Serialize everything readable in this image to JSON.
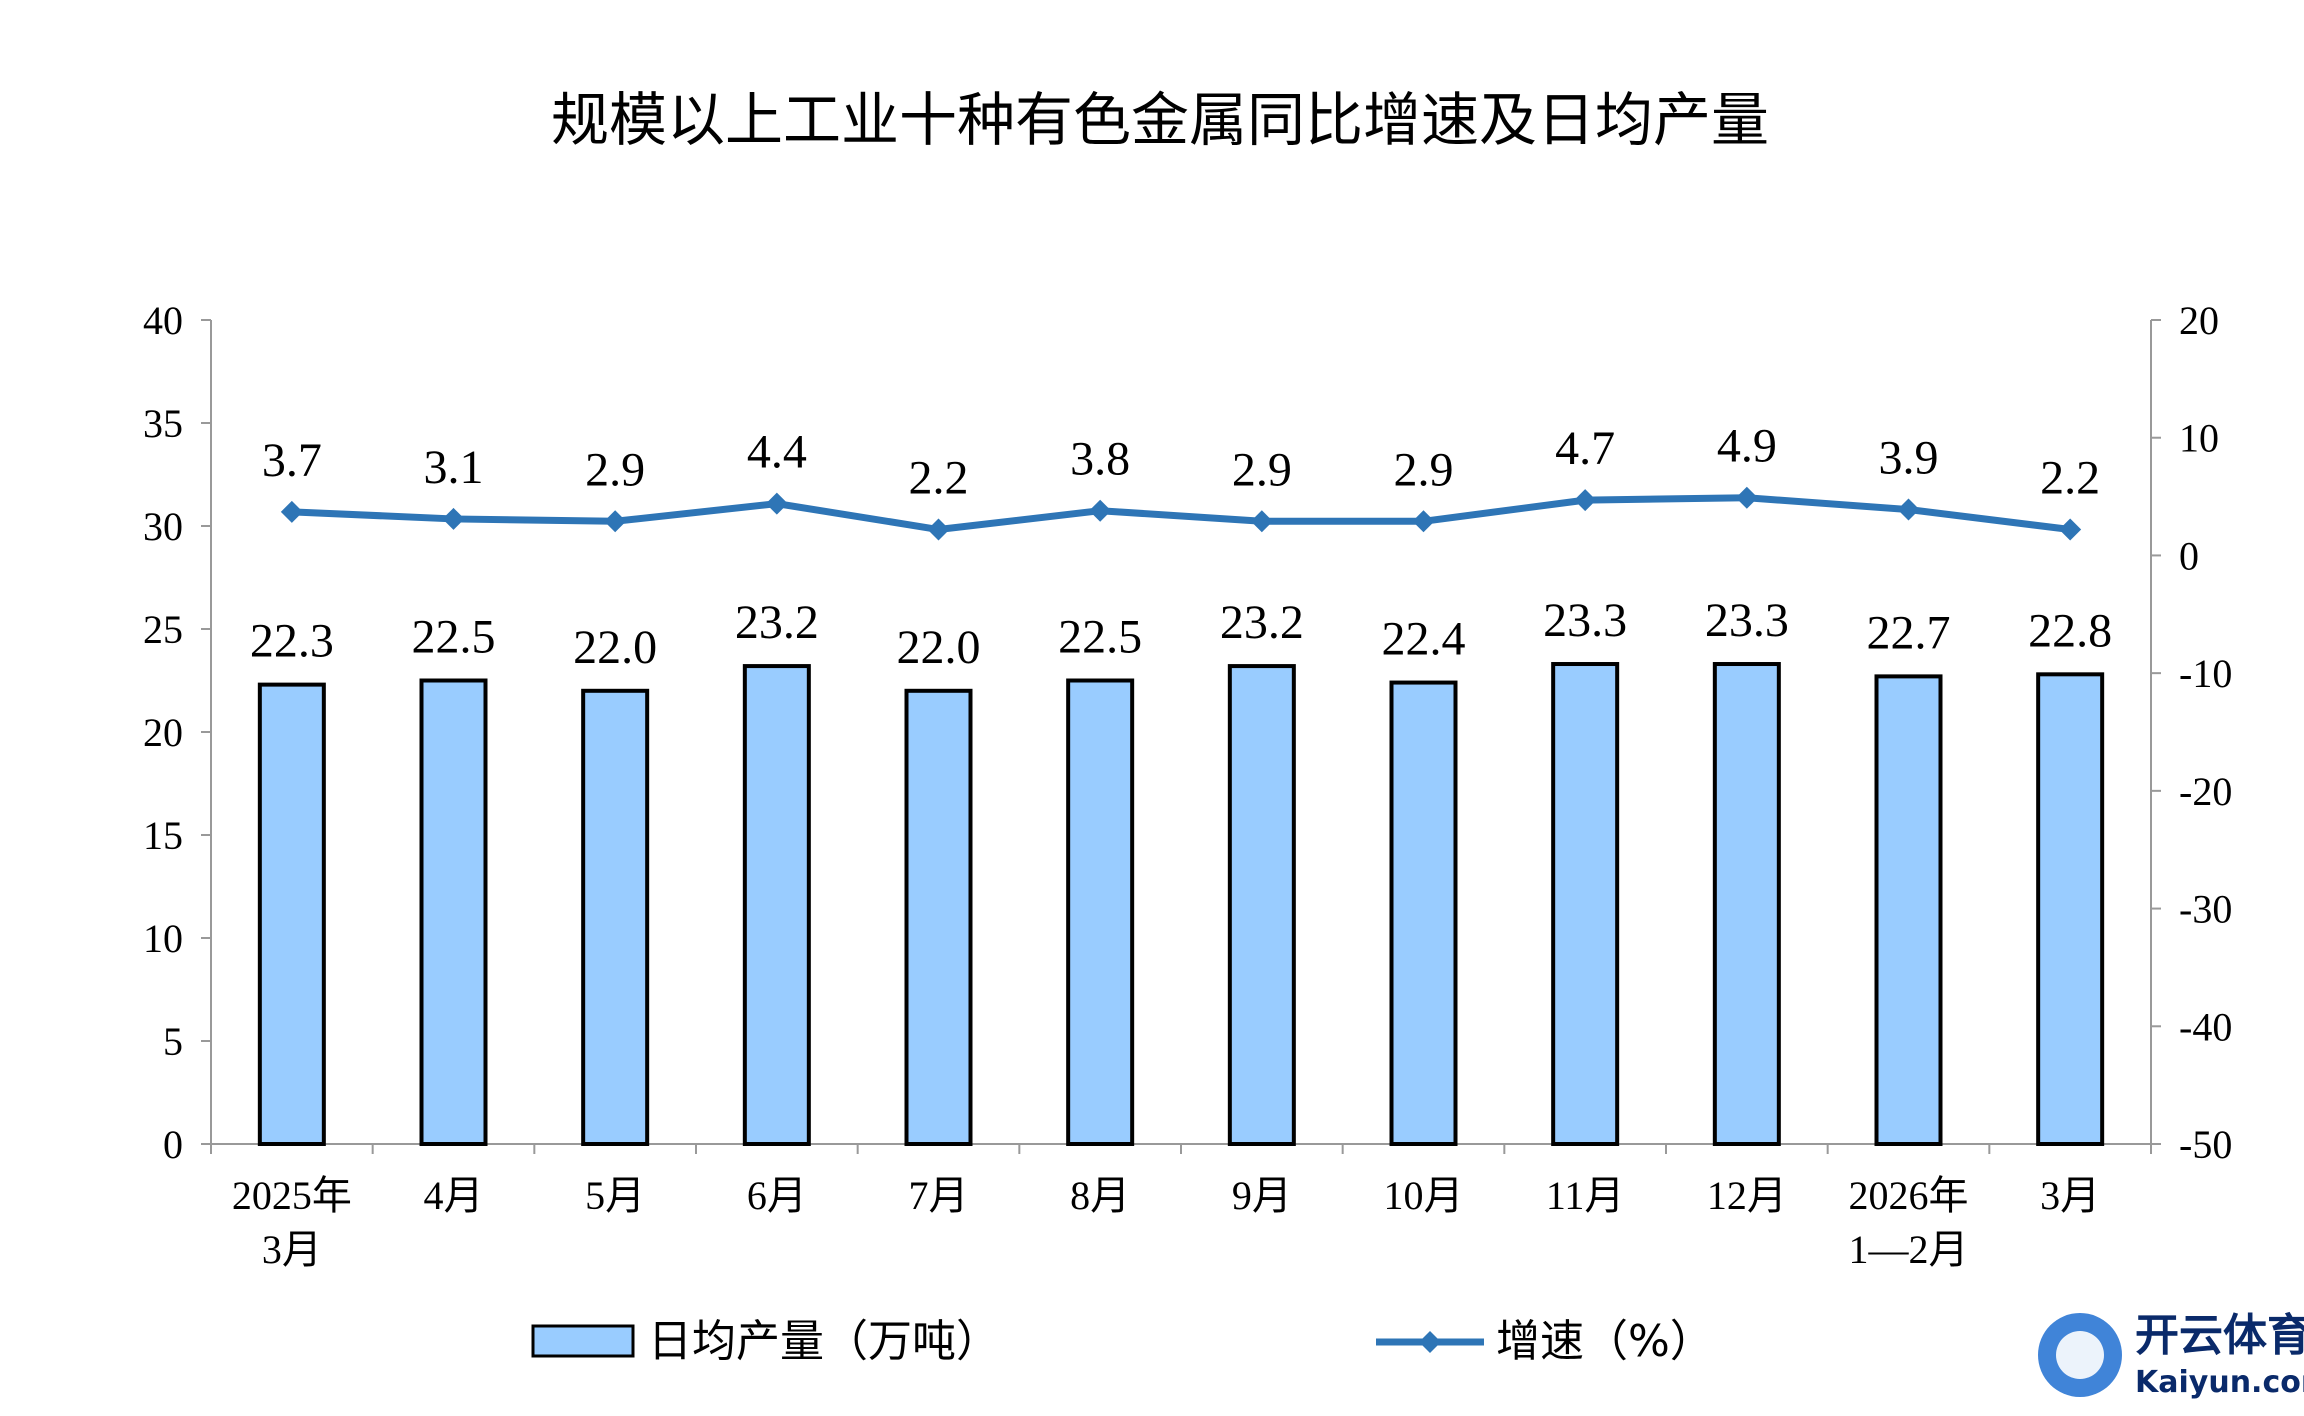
{
  "chart_data": {
    "type": "bar+line",
    "title": "规模以上工业十种有色金属同比增速及日均产量",
    "categories": [
      [
        "2025年",
        "3月"
      ],
      [
        "4月"
      ],
      [
        "5月"
      ],
      [
        "6月"
      ],
      [
        "7月"
      ],
      [
        "8月"
      ],
      [
        "9月"
      ],
      [
        "10月"
      ],
      [
        "11月"
      ],
      [
        "12月"
      ],
      [
        "2026年",
        "1—2月"
      ],
      [
        "3月"
      ]
    ],
    "series": [
      {
        "name": "日均产量（万吨）",
        "type": "bar",
        "axis": "left",
        "color": "#99ccff",
        "values": [
          22.3,
          22.5,
          22.0,
          23.2,
          22.0,
          22.5,
          23.2,
          22.4,
          23.3,
          23.3,
          22.7,
          22.8
        ]
      },
      {
        "name": "增速（%）",
        "type": "line",
        "axis": "right",
        "color": "#2e75b6",
        "values": [
          3.7,
          3.1,
          2.9,
          4.4,
          2.2,
          3.8,
          2.9,
          2.9,
          4.7,
          4.9,
          3.9,
          2.2
        ]
      }
    ],
    "left_axis": {
      "range": [
        0,
        40
      ],
      "ticks": [
        0,
        5,
        10,
        15,
        20,
        25,
        30,
        35,
        40
      ]
    },
    "right_axis": {
      "range": [
        -50,
        20
      ],
      "ticks": [
        20,
        10,
        0,
        -10,
        -20,
        -30,
        -40,
        -50
      ]
    },
    "grid": false,
    "legend_position": "bottom"
  },
  "watermark": {
    "text": "开云体育",
    "subtext": "Kaiyun.com"
  }
}
